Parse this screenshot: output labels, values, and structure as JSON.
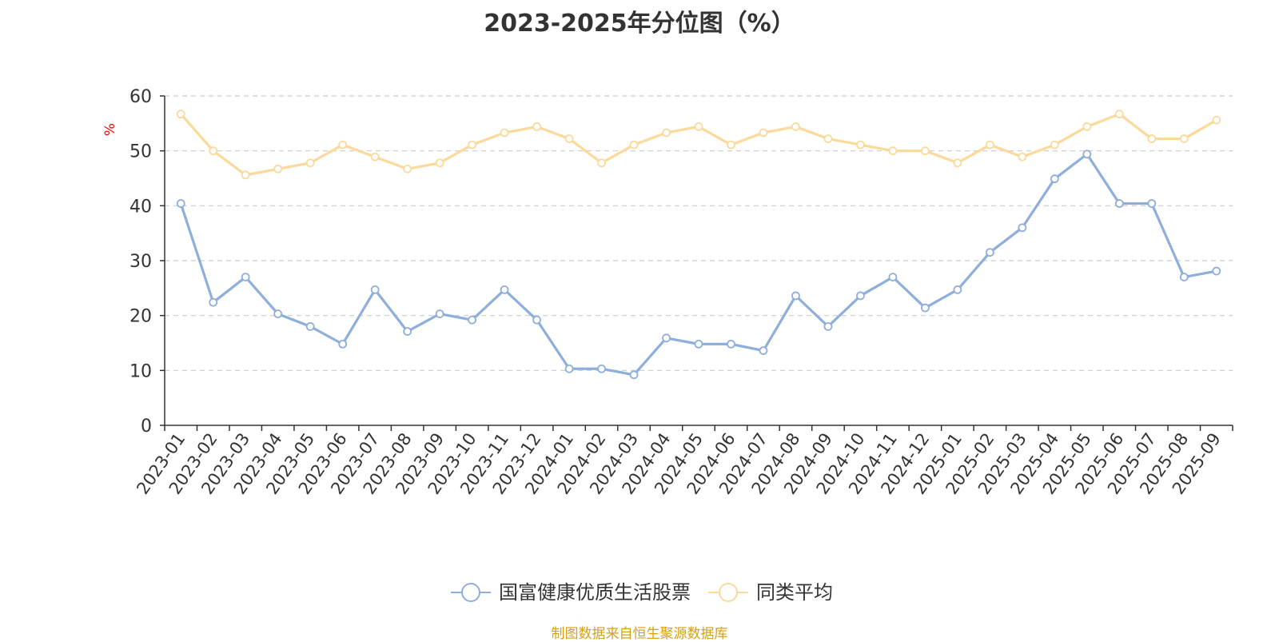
{
  "chart_data": {
    "type": "line",
    "title": "2023-2025年分位图（%）",
    "ylabel": "%",
    "xlabel": "",
    "ylim": [
      0,
      60
    ],
    "yticks": [
      0,
      10,
      20,
      30,
      40,
      50,
      60
    ],
    "grid": "horizontal-dashed",
    "legend_position": "bottom-center",
    "categories": [
      "2023-01",
      "2023-02",
      "2023-03",
      "2023-04",
      "2023-05",
      "2023-06",
      "2023-07",
      "2023-08",
      "2023-09",
      "2023-10",
      "2023-11",
      "2023-12",
      "2024-01",
      "2024-02",
      "2024-03",
      "2024-04",
      "2024-05",
      "2024-06",
      "2024-07",
      "2024-08",
      "2024-09",
      "2024-10",
      "2024-11",
      "2024-12",
      "2025-01",
      "2025-02",
      "2025-03",
      "2025-04",
      "2025-05",
      "2025-06",
      "2025-07",
      "2025-08",
      "2025-09"
    ],
    "series": [
      {
        "name": "国富健康优质生活股票",
        "color": "#8eaedb",
        "values": [
          40.4,
          22.4,
          27.0,
          20.3,
          18.0,
          14.8,
          24.7,
          17.1,
          20.3,
          19.2,
          24.7,
          19.2,
          10.3,
          10.3,
          9.2,
          15.9,
          14.8,
          14.8,
          13.6,
          23.6,
          18.0,
          23.6,
          27.0,
          21.4,
          24.7,
          31.5,
          36.0,
          44.9,
          49.4,
          40.4,
          40.4,
          27.0,
          28.1
        ]
      },
      {
        "name": "同类平均",
        "color": "#fbd99a",
        "values": [
          56.7,
          50.0,
          45.6,
          46.7,
          47.8,
          51.1,
          48.9,
          46.7,
          47.8,
          51.1,
          53.3,
          54.4,
          52.2,
          47.8,
          51.1,
          53.3,
          54.4,
          51.1,
          53.3,
          54.4,
          52.2,
          51.1,
          50.0,
          50.0,
          47.8,
          51.1,
          48.9,
          51.1,
          54.4,
          56.7,
          52.2,
          52.2,
          55.6
        ]
      }
    ]
  },
  "source_note": "制图数据来自恒生聚源数据库",
  "colors": {
    "axis": "#333333",
    "grid": "#cccccc",
    "ylabel": "#ff0000",
    "source_note": "#d4a017",
    "text": "#333333"
  }
}
